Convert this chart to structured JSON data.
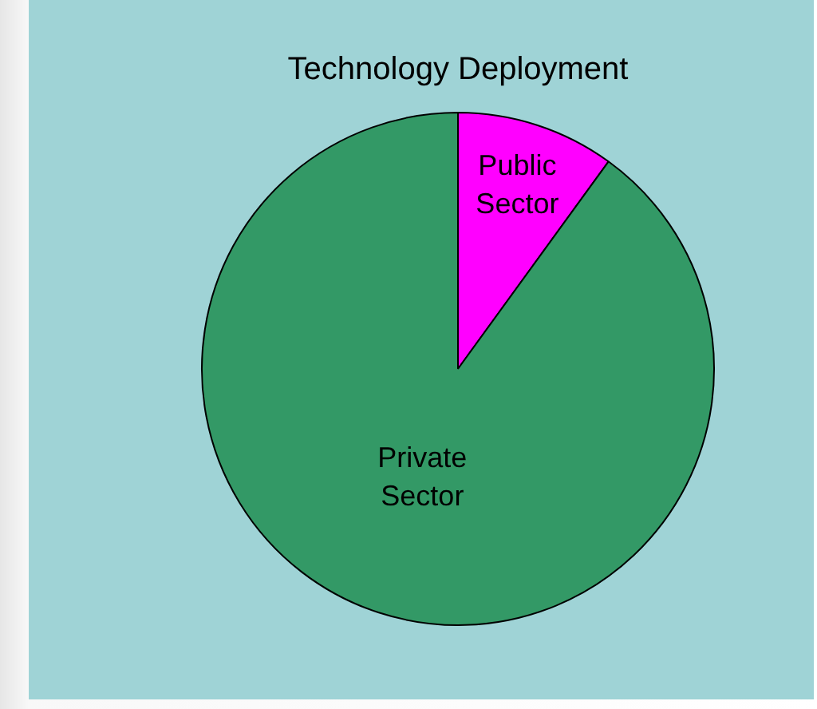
{
  "chart_data": {
    "type": "pie",
    "title": "Technology Deployment",
    "categories": [
      "Public Sector",
      "Private Sector"
    ],
    "values": [
      10,
      90
    ],
    "colors": [
      "#ff00ff",
      "#339966"
    ]
  }
}
